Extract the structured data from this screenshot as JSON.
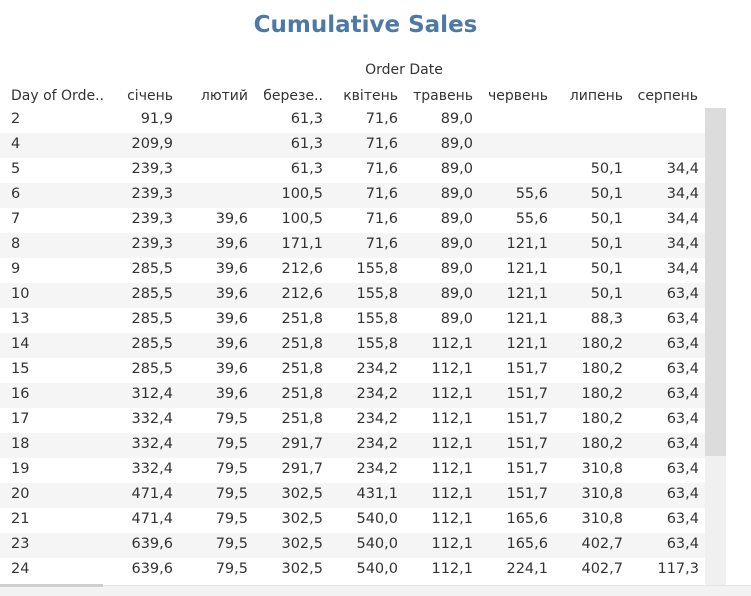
{
  "chart_data": {
    "type": "table",
    "title": "Cumulative Sales",
    "column_group_label": "Order Date",
    "row_header": "Day of Orde..",
    "columns": [
      "січень",
      "лютий",
      "березе..",
      "квітень",
      "травень",
      "червень",
      "липень",
      "серпень"
    ],
    "rows": [
      {
        "day": "2",
        "values": [
          "91,9",
          "",
          "61,3",
          "71,6",
          "89,0",
          "",
          "",
          ""
        ]
      },
      {
        "day": "4",
        "values": [
          "209,9",
          "",
          "61,3",
          "71,6",
          "89,0",
          "",
          "",
          ""
        ]
      },
      {
        "day": "5",
        "values": [
          "239,3",
          "",
          "61,3",
          "71,6",
          "89,0",
          "",
          "50,1",
          "34,4"
        ]
      },
      {
        "day": "6",
        "values": [
          "239,3",
          "",
          "100,5",
          "71,6",
          "89,0",
          "55,6",
          "50,1",
          "34,4"
        ]
      },
      {
        "day": "7",
        "values": [
          "239,3",
          "39,6",
          "100,5",
          "71,6",
          "89,0",
          "55,6",
          "50,1",
          "34,4"
        ]
      },
      {
        "day": "8",
        "values": [
          "239,3",
          "39,6",
          "171,1",
          "71,6",
          "89,0",
          "121,1",
          "50,1",
          "34,4"
        ]
      },
      {
        "day": "9",
        "values": [
          "285,5",
          "39,6",
          "212,6",
          "155,8",
          "89,0",
          "121,1",
          "50,1",
          "34,4"
        ]
      },
      {
        "day": "10",
        "values": [
          "285,5",
          "39,6",
          "212,6",
          "155,8",
          "89,0",
          "121,1",
          "50,1",
          "63,4"
        ]
      },
      {
        "day": "13",
        "values": [
          "285,5",
          "39,6",
          "251,8",
          "155,8",
          "89,0",
          "121,1",
          "88,3",
          "63,4"
        ]
      },
      {
        "day": "14",
        "values": [
          "285,5",
          "39,6",
          "251,8",
          "155,8",
          "112,1",
          "121,1",
          "180,2",
          "63,4"
        ]
      },
      {
        "day": "15",
        "values": [
          "285,5",
          "39,6",
          "251,8",
          "234,2",
          "112,1",
          "151,7",
          "180,2",
          "63,4"
        ]
      },
      {
        "day": "16",
        "values": [
          "312,4",
          "39,6",
          "251,8",
          "234,2",
          "112,1",
          "151,7",
          "180,2",
          "63,4"
        ]
      },
      {
        "day": "17",
        "values": [
          "332,4",
          "79,5",
          "251,8",
          "234,2",
          "112,1",
          "151,7",
          "180,2",
          "63,4"
        ]
      },
      {
        "day": "18",
        "values": [
          "332,4",
          "79,5",
          "291,7",
          "234,2",
          "112,1",
          "151,7",
          "180,2",
          "63,4"
        ]
      },
      {
        "day": "19",
        "values": [
          "332,4",
          "79,5",
          "291,7",
          "234,2",
          "112,1",
          "151,7",
          "310,8",
          "63,4"
        ]
      },
      {
        "day": "20",
        "values": [
          "471,4",
          "79,5",
          "302,5",
          "431,1",
          "112,1",
          "151,7",
          "310,8",
          "63,4"
        ]
      },
      {
        "day": "21",
        "values": [
          "471,4",
          "79,5",
          "302,5",
          "540,0",
          "112,1",
          "165,6",
          "310,8",
          "63,4"
        ]
      },
      {
        "day": "23",
        "values": [
          "639,6",
          "79,5",
          "302,5",
          "540,0",
          "112,1",
          "165,6",
          "402,7",
          "63,4"
        ]
      },
      {
        "day": "24",
        "values": [
          "639,6",
          "79,5",
          "302,5",
          "540,0",
          "112,1",
          "224,1",
          "402,7",
          "117,3"
        ]
      }
    ]
  },
  "colors": {
    "title": "#4e79a7",
    "band": "#f5f5f5",
    "text": "#333333"
  }
}
